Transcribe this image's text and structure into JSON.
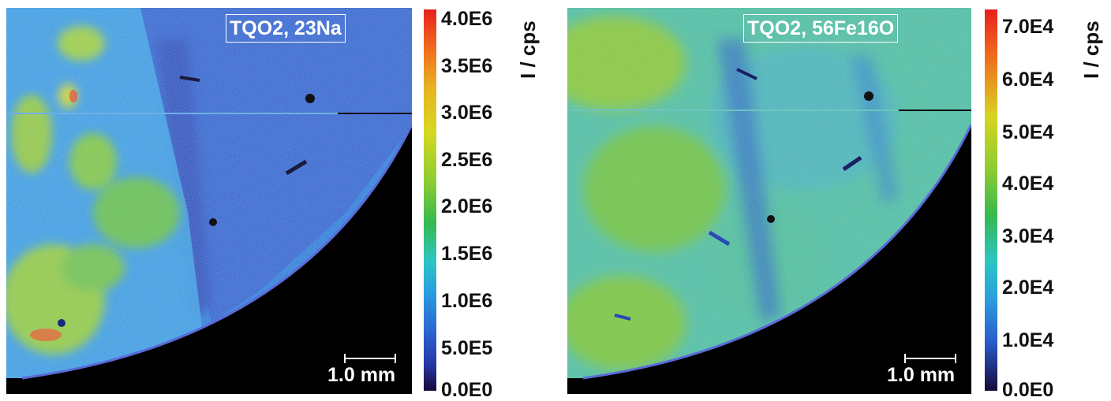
{
  "panels": [
    {
      "label": "TQO2, 23Na",
      "scale_text": "1.0 mm",
      "unit": "I / cps",
      "ticks": [
        "4.0E6",
        "3.5E6",
        "3.0E6",
        "2.5E6",
        "2.0E6",
        "1.5E6",
        "1.0E6",
        "5.0E5",
        "0.0E0"
      ]
    },
    {
      "label": "TQO2, 56Fe16O",
      "scale_text": "1.0 mm",
      "unit": "I / cps",
      "ticks": [
        "7.0E4",
        "6.0E4",
        "5.0E4",
        "4.0E4",
        "3.0E4",
        "2.0E4",
        "1.0E4",
        "0.0E0"
      ]
    }
  ],
  "colors": {
    "background": "#ffffff",
    "sample_outside": "#000000",
    "low": "#2836a8",
    "mid": "#36b94f",
    "high": "#e8201e"
  }
}
